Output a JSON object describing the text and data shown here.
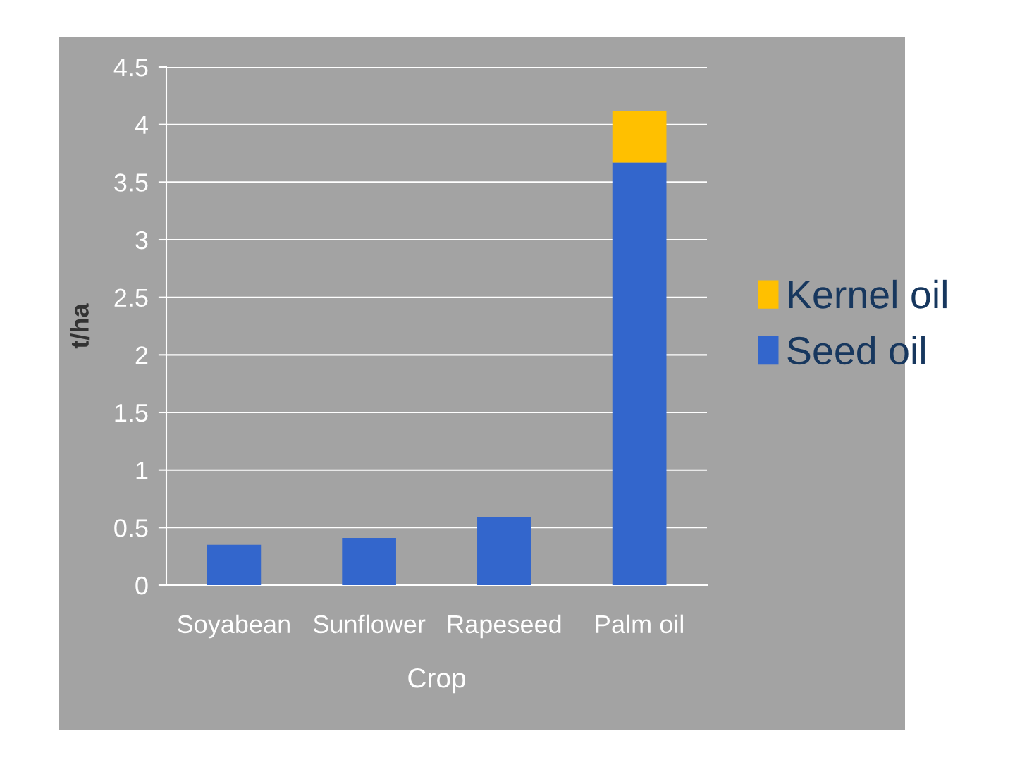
{
  "chart_data": {
    "type": "bar",
    "stacked": true,
    "xlabel": "Crop",
    "ylabel": "t/ha",
    "categories": [
      "Soyabean",
      "Sunflower",
      "Rapeseed",
      "Palm oil"
    ],
    "series": [
      {
        "name": "Seed oil",
        "color": "#3366cc",
        "values": [
          0.35,
          0.41,
          0.59,
          3.67
        ]
      },
      {
        "name": "Kernel oil",
        "color": "#ffc000",
        "values": [
          null,
          null,
          null,
          0.45
        ]
      }
    ],
    "ylim": [
      0,
      4.5
    ],
    "yticks": [
      0,
      0.5,
      1,
      1.5,
      2,
      2.5,
      3,
      3.5,
      4,
      4.5
    ],
    "grid": "y",
    "legend": "right"
  }
}
